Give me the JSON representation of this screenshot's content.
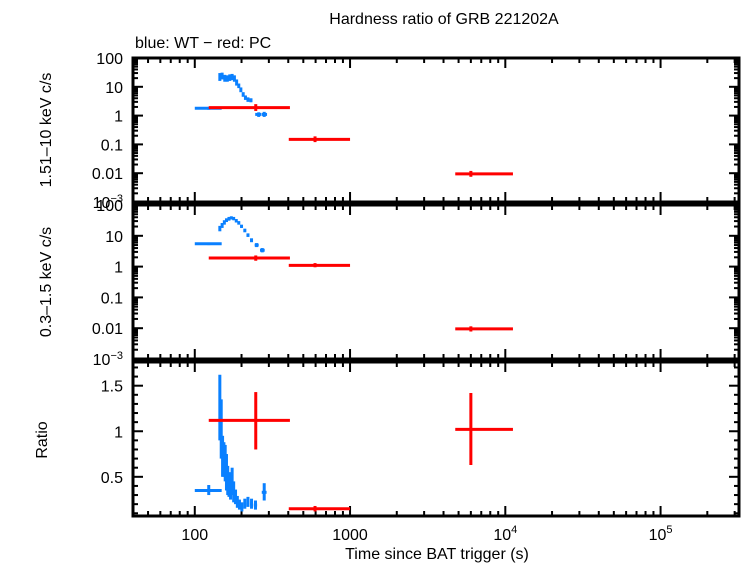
{
  "chart_data": [
    {
      "panel": "top",
      "type": "scatter",
      "title": "Hardness ratio of GRB 221202A",
      "subtitle": "blue: WT − red: PC",
      "xlabel": "Time since BAT trigger (s)",
      "ylabel": "1.51–10 keV c/s",
      "xscale": "log",
      "yscale": "log",
      "xlim": [
        40,
        320000
      ],
      "ylim": [
        0.001,
        100
      ],
      "yticks": [
        {
          "v": 100,
          "label": "100"
        },
        {
          "v": 10,
          "label": "10"
        },
        {
          "v": 1,
          "label": "1"
        },
        {
          "v": 0.1,
          "label": "0.1"
        },
        {
          "v": 0.01,
          "label": "0.01"
        },
        {
          "v": 0.001,
          "label": "10⁻³"
        }
      ],
      "series": [
        {
          "name": "WT",
          "color": "#0a80ff",
          "points": [
            {
              "x": 123,
              "y": 1.8,
              "xlo": 100,
              "xhi": 149,
              "ylo": 1.6,
              "yhi": 2.0
            },
            {
              "x": 145,
              "y": 22,
              "xlo": 143,
              "xhi": 147,
              "ylo": 16,
              "yhi": 30
            },
            {
              "x": 150,
              "y": 24,
              "xlo": 148,
              "xhi": 152,
              "ylo": 18,
              "yhi": 31
            },
            {
              "x": 156,
              "y": 20,
              "xlo": 154,
              "xhi": 158,
              "ylo": 15,
              "yhi": 26
            },
            {
              "x": 162,
              "y": 19,
              "xlo": 160,
              "xhi": 164,
              "ylo": 15,
              "yhi": 25
            },
            {
              "x": 168,
              "y": 21,
              "xlo": 166,
              "xhi": 170,
              "ylo": 16,
              "yhi": 27
            },
            {
              "x": 174,
              "y": 22,
              "xlo": 172,
              "xhi": 176,
              "ylo": 17,
              "yhi": 28
            },
            {
              "x": 180,
              "y": 20,
              "xlo": 178,
              "xhi": 182,
              "ylo": 15,
              "yhi": 25
            },
            {
              "x": 186,
              "y": 14,
              "xlo": 184,
              "xhi": 188,
              "ylo": 11,
              "yhi": 18
            },
            {
              "x": 192,
              "y": 11,
              "xlo": 190,
              "xhi": 194,
              "ylo": 9,
              "yhi": 13
            },
            {
              "x": 198,
              "y": 8,
              "xlo": 196,
              "xhi": 200,
              "ylo": 6.5,
              "yhi": 9.5
            },
            {
              "x": 205,
              "y": 5.5,
              "xlo": 202,
              "xhi": 208,
              "ylo": 4.5,
              "yhi": 6.5
            },
            {
              "x": 212,
              "y": 4.2,
              "xlo": 209,
              "xhi": 215,
              "ylo": 3.5,
              "yhi": 5.0
            },
            {
              "x": 220,
              "y": 3.6,
              "xlo": 216,
              "xhi": 224,
              "ylo": 3.0,
              "yhi": 4.3
            },
            {
              "x": 230,
              "y": 3.4,
              "xlo": 225,
              "xhi": 235,
              "ylo": 2.9,
              "yhi": 4.0
            },
            {
              "x": 258,
              "y": 1.1,
              "xlo": 245,
              "xhi": 268,
              "ylo": 0.9,
              "yhi": 1.3
            },
            {
              "x": 280,
              "y": 1.1,
              "xlo": 270,
              "xhi": 292,
              "ylo": 0.9,
              "yhi": 1.35
            }
          ]
        },
        {
          "name": "PC",
          "color": "#ff0000",
          "points": [
            {
              "x": 247,
              "y": 1.9,
              "xlo": 123,
              "xhi": 410,
              "ylo": 1.45,
              "yhi": 2.5
            },
            {
              "x": 595,
              "y": 0.15,
              "xlo": 403,
              "xhi": 1000,
              "ylo": 0.12,
              "yhi": 0.19
            },
            {
              "x": 6000,
              "y": 0.0095,
              "xlo": 4760,
              "xhi": 11200,
              "ylo": 0.0075,
              "yhi": 0.012
            }
          ]
        }
      ]
    },
    {
      "panel": "middle",
      "type": "scatter",
      "ylabel": "0.3–1.5 keV c/s",
      "xscale": "log",
      "yscale": "log",
      "xlim": [
        40,
        320000
      ],
      "ylim": [
        0.001,
        100
      ],
      "yticks": [
        {
          "v": 100,
          "label": "100"
        },
        {
          "v": 10,
          "label": "10"
        },
        {
          "v": 1,
          "label": "1"
        },
        {
          "v": 0.1,
          "label": "0.1"
        },
        {
          "v": 0.01,
          "label": "0.01"
        },
        {
          "v": 0.001,
          "label": "10⁻³"
        }
      ],
      "series": [
        {
          "name": "WT",
          "color": "#0a80ff",
          "points": [
            {
              "x": 123,
              "y": 5.5,
              "xlo": 100,
              "xhi": 149,
              "ylo": 5.0,
              "yhi": 6.0
            },
            {
              "x": 145,
              "y": 17,
              "xlo": 143,
              "xhi": 147,
              "ylo": 14,
              "yhi": 21
            },
            {
              "x": 150,
              "y": 22,
              "xlo": 148,
              "xhi": 152,
              "ylo": 18,
              "yhi": 26
            },
            {
              "x": 155,
              "y": 27,
              "xlo": 153,
              "xhi": 157,
              "ylo": 23,
              "yhi": 32
            },
            {
              "x": 160,
              "y": 32,
              "xlo": 158,
              "xhi": 162,
              "ylo": 28,
              "yhi": 37
            },
            {
              "x": 166,
              "y": 36,
              "xlo": 164,
              "xhi": 168,
              "ylo": 31,
              "yhi": 41
            },
            {
              "x": 172,
              "y": 38,
              "xlo": 170,
              "xhi": 174,
              "ylo": 34,
              "yhi": 43
            },
            {
              "x": 178,
              "y": 36,
              "xlo": 176,
              "xhi": 180,
              "ylo": 32,
              "yhi": 41
            },
            {
              "x": 185,
              "y": 31,
              "xlo": 183,
              "xhi": 187,
              "ylo": 27,
              "yhi": 35
            },
            {
              "x": 192,
              "y": 26,
              "xlo": 189,
              "xhi": 195,
              "ylo": 23,
              "yhi": 30
            },
            {
              "x": 200,
              "y": 20,
              "xlo": 197,
              "xhi": 203,
              "ylo": 18,
              "yhi": 23
            },
            {
              "x": 210,
              "y": 15,
              "xlo": 206,
              "xhi": 214,
              "ylo": 13,
              "yhi": 17
            },
            {
              "x": 220,
              "y": 10.5,
              "xlo": 216,
              "xhi": 224,
              "ylo": 9.2,
              "yhi": 12
            },
            {
              "x": 232,
              "y": 7.2,
              "xlo": 227,
              "xhi": 237,
              "ylo": 6.2,
              "yhi": 8.3
            },
            {
              "x": 250,
              "y": 5.0,
              "xlo": 243,
              "xhi": 258,
              "ylo": 4.3,
              "yhi": 5.8
            },
            {
              "x": 272,
              "y": 3.4,
              "xlo": 263,
              "xhi": 282,
              "ylo": 2.9,
              "yhi": 4.0
            }
          ]
        },
        {
          "name": "PC",
          "color": "#ff0000",
          "points": [
            {
              "x": 247,
              "y": 1.9,
              "xlo": 123,
              "xhi": 410,
              "ylo": 1.55,
              "yhi": 2.3
            },
            {
              "x": 595,
              "y": 1.1,
              "xlo": 403,
              "xhi": 1000,
              "ylo": 0.95,
              "yhi": 1.3
            },
            {
              "x": 6000,
              "y": 0.0095,
              "xlo": 4760,
              "xhi": 11200,
              "ylo": 0.0078,
              "yhi": 0.0115
            }
          ]
        }
      ]
    },
    {
      "panel": "bottom",
      "type": "scatter",
      "ylabel": "Ratio",
      "xlabel": "Time since BAT trigger (s)",
      "xscale": "log",
      "yscale": "linear",
      "xlim": [
        40,
        320000
      ],
      "ylim": [
        0.07,
        1.76
      ],
      "yticks": [
        {
          "v": 1.5,
          "label": "1.5"
        },
        {
          "v": 1,
          "label": "1"
        },
        {
          "v": 0.5,
          "label": "0.5"
        }
      ],
      "xticks": [
        {
          "v": 100,
          "label": "100"
        },
        {
          "v": 1000,
          "label": "1000"
        },
        {
          "v": 10000,
          "label": "10",
          "sup": "4"
        },
        {
          "v": 100000,
          "label": "10",
          "sup": "5"
        }
      ],
      "series": [
        {
          "name": "WT",
          "color": "#0a80ff",
          "points": [
            {
              "x": 123,
              "y": 0.35,
              "xlo": 100,
              "xhi": 149,
              "ylo": 0.3,
              "yhi": 0.41
            },
            {
              "x": 145,
              "y": 1.2,
              "xlo": 144,
              "xhi": 146,
              "ylo": 0.9,
              "yhi": 1.62
            },
            {
              "x": 148,
              "y": 1.05,
              "xlo": 147,
              "xhi": 149,
              "ylo": 0.7,
              "yhi": 1.35
            },
            {
              "x": 151,
              "y": 0.75,
              "xlo": 150,
              "xhi": 152,
              "ylo": 0.5,
              "yhi": 0.95
            },
            {
              "x": 154,
              "y": 0.7,
              "xlo": 153,
              "xhi": 155,
              "ylo": 0.5,
              "yhi": 0.88
            },
            {
              "x": 157,
              "y": 0.65,
              "xlo": 156,
              "xhi": 158,
              "ylo": 0.45,
              "yhi": 0.85
            },
            {
              "x": 160,
              "y": 0.55,
              "xlo": 159,
              "xhi": 161,
              "ylo": 0.35,
              "yhi": 0.75
            },
            {
              "x": 163,
              "y": 0.45,
              "xlo": 162,
              "xhi": 164,
              "ylo": 0.3,
              "yhi": 0.62
            },
            {
              "x": 166,
              "y": 0.4,
              "xlo": 165,
              "xhi": 167,
              "ylo": 0.28,
              "yhi": 0.55
            },
            {
              "x": 170,
              "y": 0.38,
              "xlo": 169,
              "xhi": 171,
              "ylo": 0.25,
              "yhi": 0.55
            },
            {
              "x": 174,
              "y": 0.42,
              "xlo": 173,
              "xhi": 175,
              "ylo": 0.3,
              "yhi": 0.6
            },
            {
              "x": 178,
              "y": 0.32,
              "xlo": 177,
              "xhi": 179,
              "ylo": 0.22,
              "yhi": 0.45
            },
            {
              "x": 183,
              "y": 0.27,
              "xlo": 181,
              "xhi": 185,
              "ylo": 0.2,
              "yhi": 0.36
            },
            {
              "x": 188,
              "y": 0.22,
              "xlo": 186,
              "xhi": 190,
              "ylo": 0.16,
              "yhi": 0.29
            },
            {
              "x": 194,
              "y": 0.19,
              "xlo": 191,
              "xhi": 197,
              "ylo": 0.14,
              "yhi": 0.25
            },
            {
              "x": 201,
              "y": 0.17,
              "xlo": 198,
              "xhi": 204,
              "ylo": 0.12,
              "yhi": 0.22
            },
            {
              "x": 210,
              "y": 0.2,
              "xlo": 206,
              "xhi": 214,
              "ylo": 0.15,
              "yhi": 0.26
            },
            {
              "x": 220,
              "y": 0.22,
              "xlo": 216,
              "xhi": 224,
              "ylo": 0.17,
              "yhi": 0.28
            },
            {
              "x": 232,
              "y": 0.2,
              "xlo": 227,
              "xhi": 237,
              "ylo": 0.15,
              "yhi": 0.26
            },
            {
              "x": 246,
              "y": 0.19,
              "xlo": 240,
              "xhi": 252,
              "ylo": 0.14,
              "yhi": 0.24
            },
            {
              "x": 280,
              "y": 0.33,
              "xlo": 270,
              "xhi": 290,
              "ylo": 0.24,
              "yhi": 0.43
            }
          ]
        },
        {
          "name": "PC",
          "color": "#ff0000",
          "points": [
            {
              "x": 247,
              "y": 1.12,
              "xlo": 123,
              "xhi": 410,
              "ylo": 0.8,
              "yhi": 1.43
            },
            {
              "x": 595,
              "y": 0.15,
              "xlo": 403,
              "xhi": 1000,
              "ylo": 0.12,
              "yhi": 0.18
            },
            {
              "x": 6000,
              "y": 1.02,
              "xlo": 4760,
              "xhi": 11200,
              "ylo": 0.63,
              "yhi": 1.42
            }
          ]
        }
      ]
    }
  ],
  "labels": {
    "title": "Hardness ratio of GRB 221202A",
    "subtitle": "blue: WT − red: PC",
    "xlabel": "Time since BAT trigger (s)",
    "ylabel_top": "1.51–10 keV c/s",
    "ylabel_middle": "0.3–1.5 keV c/s",
    "ylabel_bottom": "Ratio"
  }
}
